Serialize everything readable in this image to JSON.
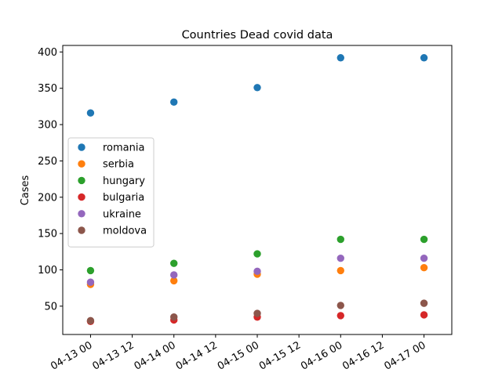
{
  "chart_data": {
    "type": "scatter",
    "title": "Countries Dead covid data",
    "xlabel": "",
    "ylabel": "Cases",
    "x": [
      "2020-04-13 00:00",
      "2020-04-14 00:00",
      "2020-04-15 00:00",
      "2020-04-16 00:00",
      "2020-04-17 00:00"
    ],
    "xlim": [
      "2020-04-12 16:00",
      "2020-04-17 08:00"
    ],
    "x_tick_labels": [
      "04-13 00",
      "04-13 12",
      "04-14 00",
      "04-14 12",
      "04-15 00",
      "04-15 12",
      "04-16 00",
      "04-16 12",
      "04-17 00"
    ],
    "ylim": [
      11,
      409
    ],
    "y_ticks": [
      50,
      100,
      150,
      200,
      250,
      300,
      350,
      400
    ],
    "legend_position": "center-left",
    "series": [
      {
        "name": "romania",
        "color": "#1f77b4",
        "values": [
          316,
          331,
          351,
          392,
          392
        ]
      },
      {
        "name": "serbia",
        "color": "#ff7f0e",
        "values": [
          80,
          85,
          94,
          99,
          103
        ]
      },
      {
        "name": "hungary",
        "color": "#2ca02c",
        "values": [
          99,
          109,
          122,
          142,
          142
        ]
      },
      {
        "name": "bulgaria",
        "color": "#d62728",
        "values": [
          29,
          31,
          35,
          37,
          38
        ]
      },
      {
        "name": "ukraine",
        "color": "#9467bd",
        "values": [
          83,
          93,
          98,
          116,
          116
        ]
      },
      {
        "name": "moldova",
        "color": "#8c564b",
        "values": [
          30,
          35,
          40,
          51,
          54
        ]
      }
    ]
  }
}
